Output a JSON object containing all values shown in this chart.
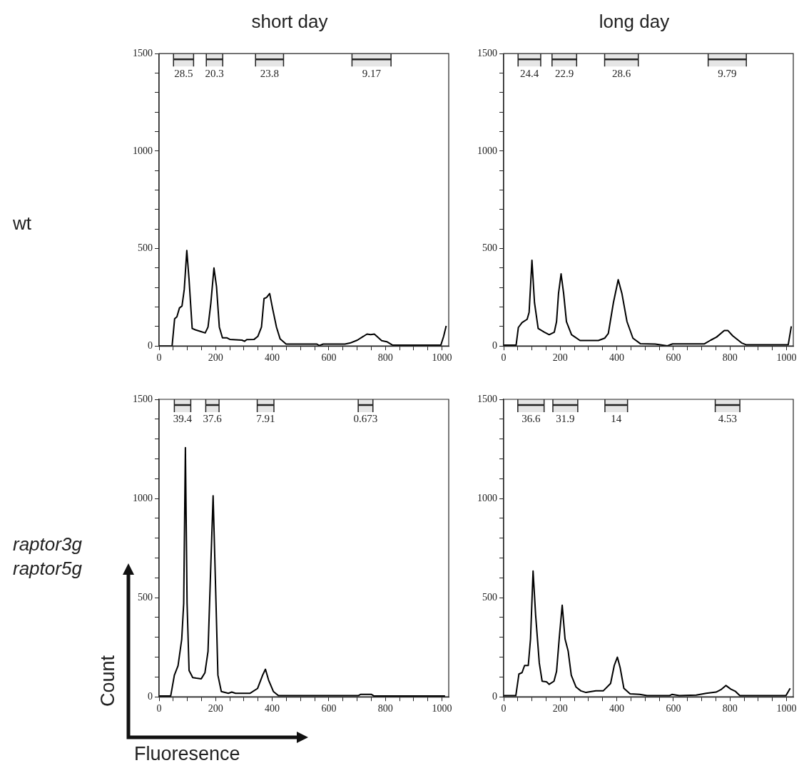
{
  "chart_data": [
    {
      "type": "line",
      "title": "short day",
      "annotations": [
        "wt"
      ],
      "color": "#000000",
      "xlim": [
        0,
        1024
      ],
      "ylim": [
        0,
        1500
      ],
      "xticks": [
        0,
        {
          "value": 50,
          "label": null
        },
        {
          "value": 100,
          "label": null
        },
        {
          "value": 150,
          "label": null
        },
        200,
        {
          "value": 250,
          "label": null
        },
        {
          "value": 300,
          "label": null
        },
        {
          "value": 350,
          "label": null
        },
        400,
        {
          "value": 450,
          "label": null
        },
        {
          "value": 500,
          "label": null
        },
        {
          "value": 550,
          "label": null
        },
        600,
        {
          "value": 650,
          "label": null
        },
        {
          "value": 700,
          "label": null
        },
        {
          "value": 750,
          "label": null
        },
        800,
        {
          "value": 850,
          "label": null
        },
        {
          "value": 900,
          "label": null
        },
        {
          "value": 950,
          "label": null
        },
        1000
      ],
      "yticks": [
        0,
        {
          "value": 100,
          "label": null
        },
        {
          "value": 200,
          "label": null
        },
        {
          "value": 300,
          "label": null
        },
        {
          "value": 400,
          "label": null
        },
        500,
        {
          "value": 600,
          "label": null
        },
        {
          "value": 700,
          "label": null
        },
        {
          "value": 800,
          "label": null
        },
        {
          "value": 900,
          "label": null
        },
        1000,
        {
          "value": 1100,
          "label": null
        },
        {
          "value": 1200,
          "label": null
        },
        {
          "value": 1300,
          "label": null
        },
        {
          "value": 1400,
          "label": null
        },
        1500
      ],
      "bands": [
        {
          "axis": "x",
          "from": 51,
          "to": 122,
          "label": "28.5"
        },
        {
          "axis": "x",
          "from": 167,
          "to": 225,
          "label": "20.3"
        },
        {
          "axis": "x",
          "from": 341,
          "to": 440,
          "label": "23.8"
        },
        {
          "axis": "x",
          "from": 682,
          "to": 820,
          "label": "9.17"
        }
      ],
      "x": [
        0,
        46,
        55,
        63,
        72,
        81,
        89,
        98,
        106,
        117,
        128,
        146,
        163,
        173,
        183,
        194,
        203,
        213,
        224,
        239,
        250,
        293,
        302,
        310,
        336,
        349,
        362,
        371,
        380,
        391,
        401,
        415,
        428,
        449,
        558,
        566,
        580,
        657,
        675,
        701,
        735,
        748,
        761,
        787,
        805,
        826,
        996,
        1006,
        1015
      ],
      "values": [
        0,
        0,
        140,
        150,
        195,
        205,
        290,
        490,
        340,
        90,
        83,
        75,
        67,
        97,
        220,
        400,
        305,
        97,
        42,
        42,
        34,
        30,
        24,
        33,
        34,
        49,
        97,
        243,
        249,
        269,
        194,
        97,
        36,
        10,
        10,
        2,
        10,
        10,
        15,
        30,
        61,
        58,
        61,
        27,
        22,
        4,
        4,
        49,
        103
      ]
    },
    {
      "type": "line",
      "title": "long day",
      "color": "#000000",
      "xlim": [
        0,
        1024
      ],
      "ylim": [
        0,
        1500
      ],
      "xticks": [
        0,
        {
          "value": 50,
          "label": null
        },
        {
          "value": 100,
          "label": null
        },
        {
          "value": 150,
          "label": null
        },
        200,
        {
          "value": 250,
          "label": null
        },
        {
          "value": 300,
          "label": null
        },
        {
          "value": 350,
          "label": null
        },
        400,
        {
          "value": 450,
          "label": null
        },
        {
          "value": 500,
          "label": null
        },
        {
          "value": 550,
          "label": null
        },
        600,
        {
          "value": 650,
          "label": null
        },
        {
          "value": 700,
          "label": null
        },
        {
          "value": 750,
          "label": null
        },
        800,
        {
          "value": 850,
          "label": null
        },
        {
          "value": 900,
          "label": null
        },
        {
          "value": 950,
          "label": null
        },
        1000
      ],
      "yticks": [
        0,
        {
          "value": 100,
          "label": null
        },
        {
          "value": 200,
          "label": null
        },
        {
          "value": 300,
          "label": null
        },
        {
          "value": 400,
          "label": null
        },
        500,
        {
          "value": 600,
          "label": null
        },
        {
          "value": 700,
          "label": null
        },
        {
          "value": 800,
          "label": null
        },
        {
          "value": 900,
          "label": null
        },
        1000,
        {
          "value": 1100,
          "label": null
        },
        {
          "value": 1200,
          "label": null
        },
        {
          "value": 1300,
          "label": null
        },
        {
          "value": 1400,
          "label": null
        },
        1500
      ],
      "bands": [
        {
          "axis": "x",
          "from": 51,
          "to": 131,
          "label": "24.4"
        },
        {
          "axis": "x",
          "from": 171,
          "to": 258,
          "label": "22.9"
        },
        {
          "axis": "x",
          "from": 357,
          "to": 476,
          "label": "28.6"
        },
        {
          "axis": "x",
          "from": 723,
          "to": 858,
          "label": "9.79"
        }
      ],
      "x": [
        0,
        44,
        52,
        65,
        83,
        90,
        100,
        109,
        122,
        144,
        161,
        179,
        187,
        194,
        203,
        212,
        222,
        240,
        270,
        335,
        357,
        370,
        388,
        405,
        418,
        436,
        457,
        483,
        536,
        579,
        597,
        710,
        732,
        753,
        780,
        793,
        810,
        841,
        858,
        1006,
        1017
      ],
      "values": [
        4,
        4,
        95,
        120,
        137,
        173,
        440,
        223,
        90,
        71,
        58,
        71,
        125,
        270,
        370,
        270,
        125,
        58,
        28,
        28,
        40,
        64,
        222,
        340,
        270,
        125,
        40,
        12,
        10,
        1,
        11,
        11,
        30,
        46,
        79,
        79,
        52,
        16,
        6,
        6,
        101
      ]
    },
    {
      "type": "line",
      "annotations": [
        "raptor3g raptor5g"
      ],
      "xlabel": "Fluoresence",
      "ylabel": "Count",
      "color": "#000000",
      "xlim": [
        0,
        1024
      ],
      "ylim": [
        0,
        1500
      ],
      "xticks": [
        0,
        {
          "value": 50,
          "label": null
        },
        {
          "value": 100,
          "label": null
        },
        {
          "value": 150,
          "label": null
        },
        200,
        {
          "value": 250,
          "label": null
        },
        {
          "value": 300,
          "label": null
        },
        {
          "value": 350,
          "label": null
        },
        400,
        {
          "value": 450,
          "label": null
        },
        {
          "value": 500,
          "label": null
        },
        {
          "value": 550,
          "label": null
        },
        600,
        {
          "value": 650,
          "label": null
        },
        {
          "value": 700,
          "label": null
        },
        {
          "value": 750,
          "label": null
        },
        800,
        {
          "value": 850,
          "label": null
        },
        {
          "value": 900,
          "label": null
        },
        {
          "value": 950,
          "label": null
        },
        1000
      ],
      "yticks": [
        0,
        {
          "value": 100,
          "label": null
        },
        {
          "value": 200,
          "label": null
        },
        {
          "value": 300,
          "label": null
        },
        {
          "value": 400,
          "label": null
        },
        500,
        {
          "value": 600,
          "label": null
        },
        {
          "value": 700,
          "label": null
        },
        {
          "value": 800,
          "label": null
        },
        {
          "value": 900,
          "label": null
        },
        1000,
        {
          "value": 1100,
          "label": null
        },
        {
          "value": 1200,
          "label": null
        },
        {
          "value": 1300,
          "label": null
        },
        {
          "value": 1400,
          "label": null
        },
        1500
      ],
      "bands": [
        {
          "axis": "x",
          "from": 54,
          "to": 112,
          "label": "39.4"
        },
        {
          "axis": "x",
          "from": 165,
          "to": 212,
          "label": "37.6"
        },
        {
          "axis": "x",
          "from": 347,
          "to": 406,
          "label": "7.91"
        },
        {
          "axis": "x",
          "from": 704,
          "to": 756,
          "label": "0.673"
        }
      ],
      "x": [
        0,
        41,
        54,
        67,
        80,
        87,
        93,
        99,
        106,
        119,
        132,
        149,
        162,
        173,
        184,
        191,
        199,
        208,
        220,
        245,
        257,
        270,
        322,
        348,
        366,
        376,
        387,
        404,
        422,
        704,
        712,
        751,
        760,
        1011
      ],
      "values": [
        4,
        4,
        109,
        157,
        290,
        471,
        1256,
        471,
        133,
        97,
        94,
        91,
        121,
        229,
        713,
        1014,
        592,
        109,
        27,
        18,
        24,
        18,
        18,
        42,
        109,
        139,
        85,
        27,
        6,
        6,
        12,
        12,
        4,
        4
      ]
    },
    {
      "type": "line",
      "color": "#000000",
      "xlim": [
        0,
        1024
      ],
      "ylim": [
        0,
        1500
      ],
      "xticks": [
        0,
        {
          "value": 50,
          "label": null
        },
        {
          "value": 100,
          "label": null
        },
        {
          "value": 150,
          "label": null
        },
        200,
        {
          "value": 250,
          "label": null
        },
        {
          "value": 300,
          "label": null
        },
        {
          "value": 350,
          "label": null
        },
        400,
        {
          "value": 450,
          "label": null
        },
        {
          "value": 500,
          "label": null
        },
        {
          "value": 550,
          "label": null
        },
        600,
        {
          "value": 650,
          "label": null
        },
        {
          "value": 700,
          "label": null
        },
        {
          "value": 750,
          "label": null
        },
        800,
        {
          "value": 850,
          "label": null
        },
        {
          "value": 900,
          "label": null
        },
        {
          "value": 950,
          "label": null
        },
        1000
      ],
      "yticks": [
        0,
        {
          "value": 100,
          "label": null
        },
        {
          "value": 200,
          "label": null
        },
        {
          "value": 300,
          "label": null
        },
        {
          "value": 400,
          "label": null
        },
        500,
        {
          "value": 600,
          "label": null
        },
        {
          "value": 700,
          "label": null
        },
        {
          "value": 800,
          "label": null
        },
        {
          "value": 900,
          "label": null
        },
        1000,
        {
          "value": 1100,
          "label": null
        },
        {
          "value": 1200,
          "label": null
        },
        {
          "value": 1300,
          "label": null
        },
        {
          "value": 1400,
          "label": null
        },
        1500
      ],
      "bands": [
        {
          "axis": "x",
          "from": 50,
          "to": 143,
          "label": "36.6"
        },
        {
          "axis": "x",
          "from": 174,
          "to": 262,
          "label": "31.9"
        },
        {
          "axis": "x",
          "from": 358,
          "to": 438,
          "label": "14"
        },
        {
          "axis": "x",
          "from": 748,
          "to": 835,
          "label": "4.53"
        }
      ],
      "x": [
        0,
        43,
        54,
        65,
        74,
        87,
        95,
        104,
        113,
        126,
        136,
        152,
        161,
        178,
        187,
        197,
        207,
        217,
        228,
        239,
        256,
        273,
        291,
        326,
        352,
        378,
        391,
        402,
        412,
        425,
        447,
        481,
        507,
        586,
        595,
        621,
        681,
        716,
        751,
        768,
        786,
        803,
        820,
        835,
        998,
        1013
      ],
      "values": [
        6,
        6,
        115,
        122,
        158,
        158,
        292,
        634,
        413,
        170,
        79,
        75,
        63,
        79,
        128,
        304,
        462,
        292,
        231,
        109,
        49,
        30,
        22,
        30,
        30,
        67,
        158,
        200,
        146,
        43,
        15,
        12,
        6,
        6,
        12,
        6,
        9,
        18,
        24,
        36,
        57,
        39,
        27,
        6,
        6,
        43
      ]
    }
  ]
}
